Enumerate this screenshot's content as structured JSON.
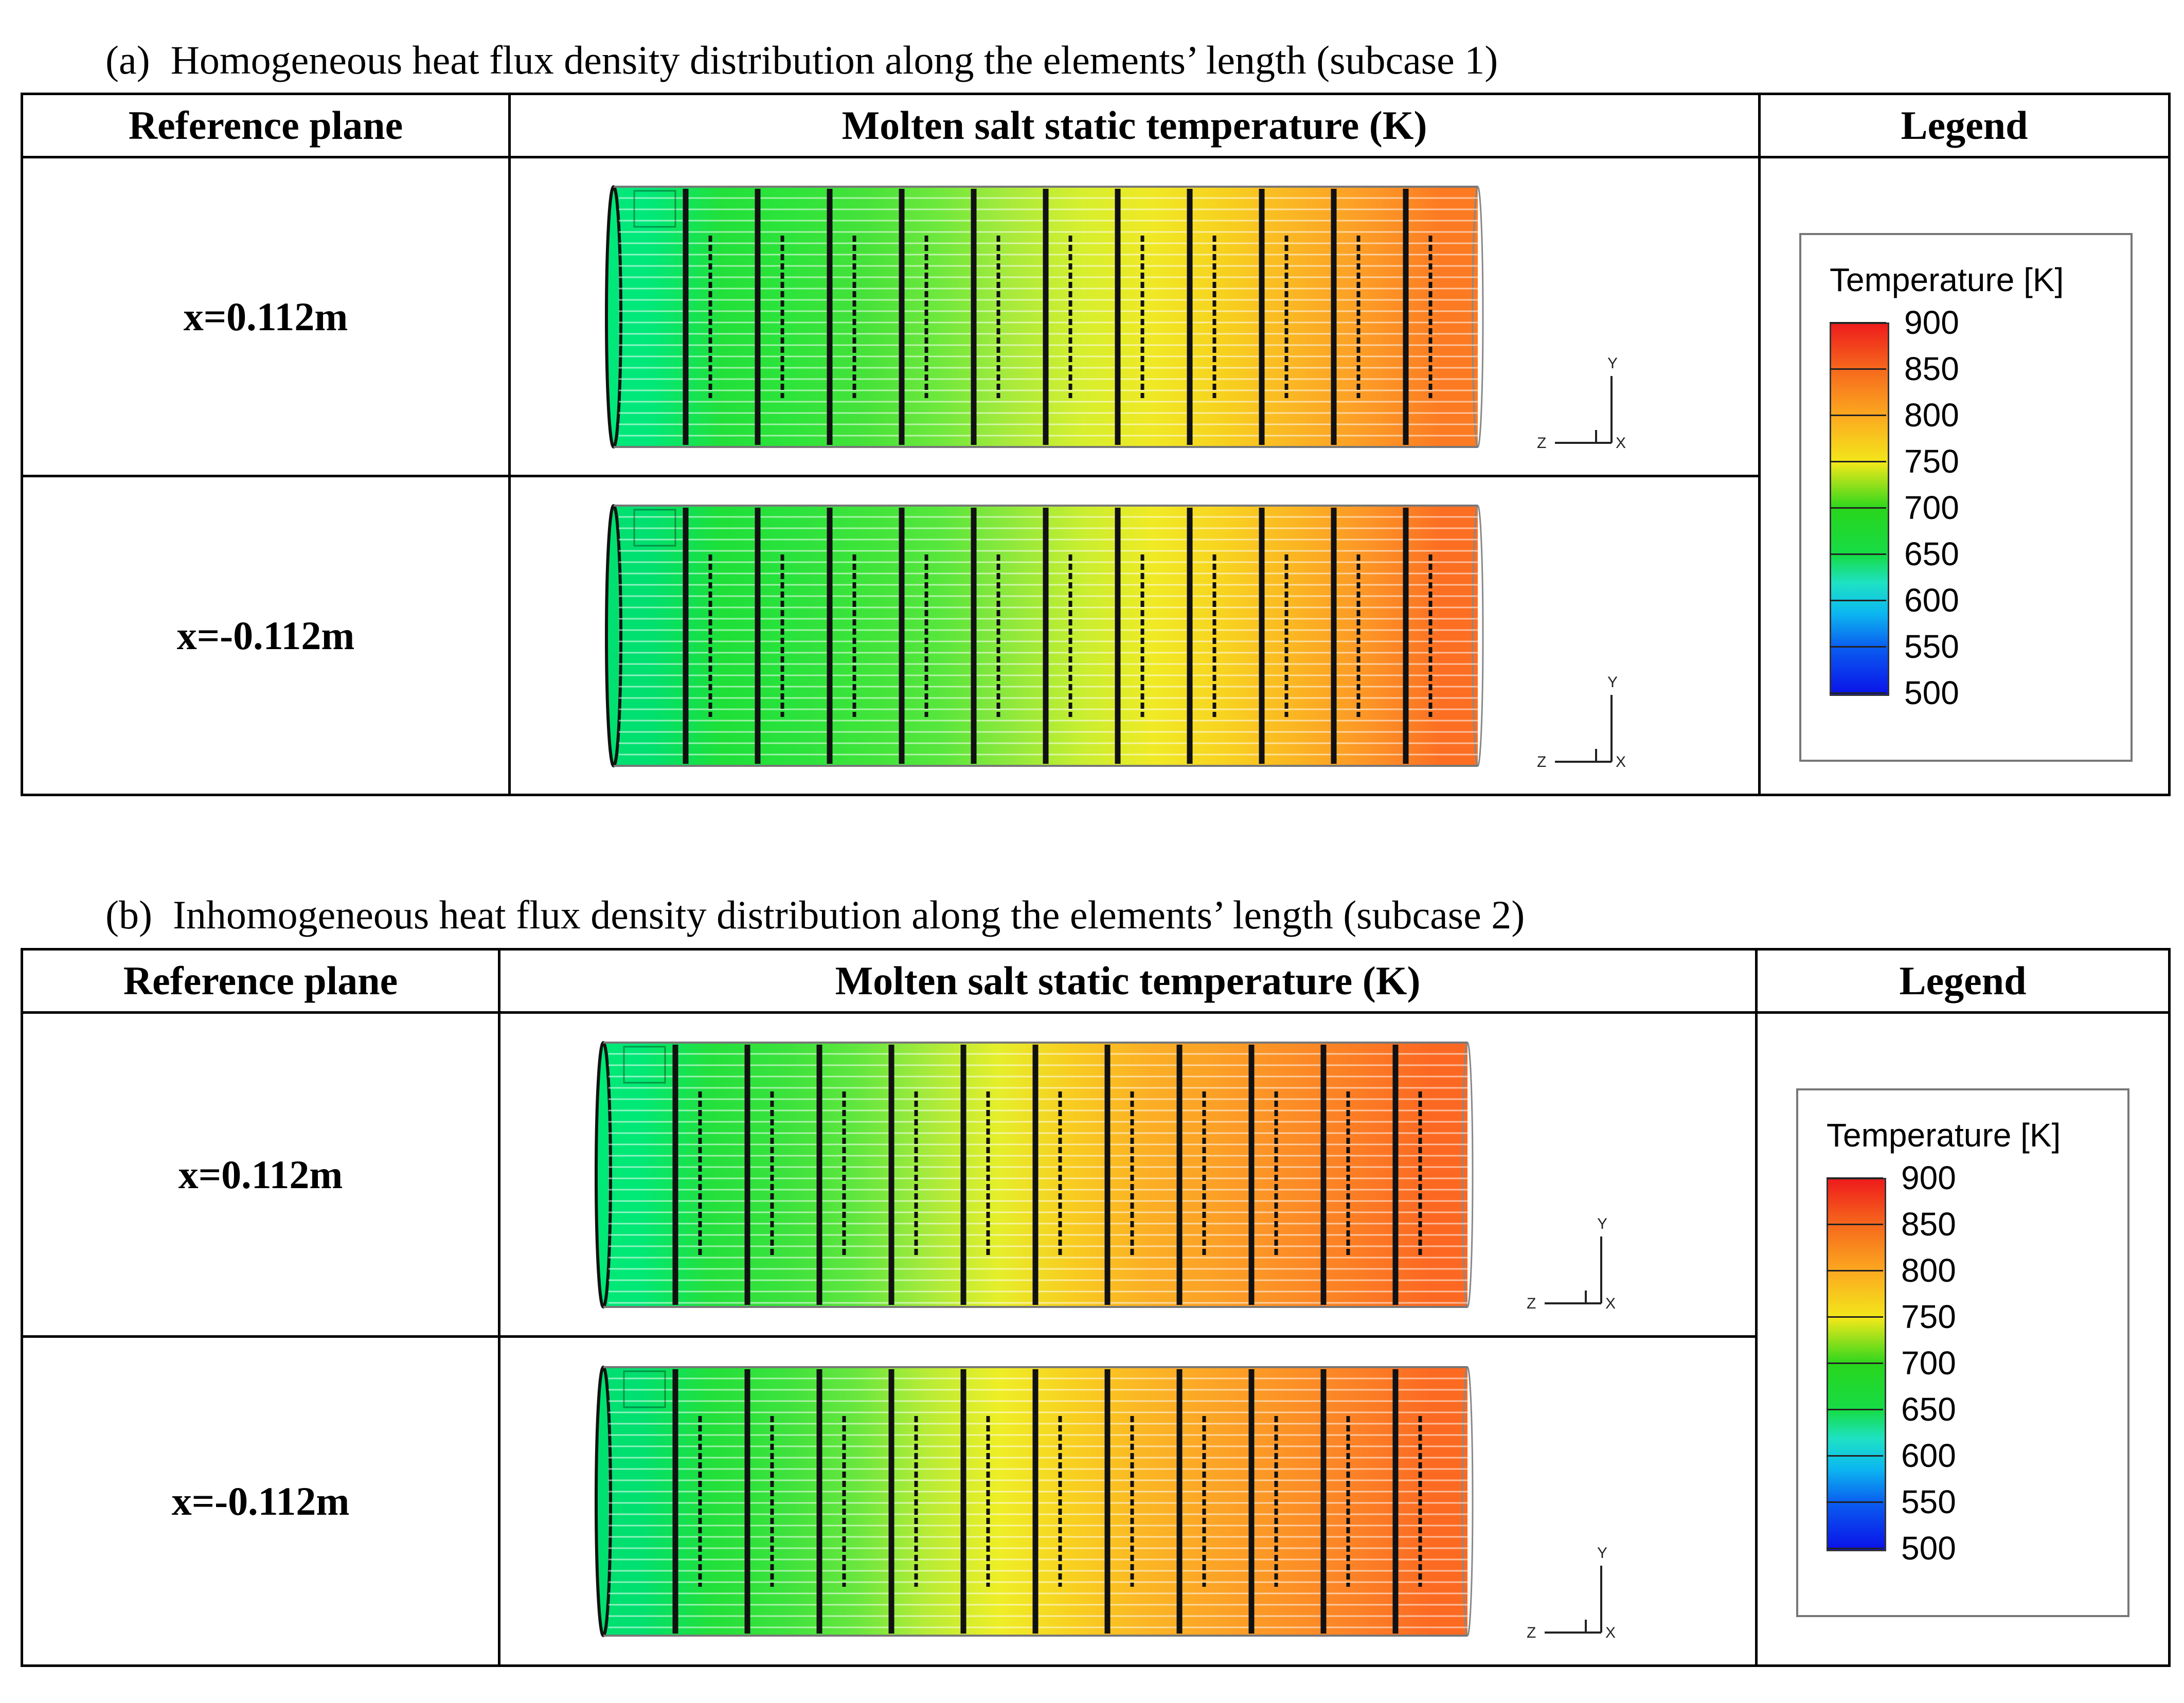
{
  "subcase_a": {
    "label": "(a)",
    "caption": "Homogeneous heat flux density distribution along the elements’ length (subcase 1)",
    "headers": {
      "ref": "Reference plane",
      "temp": "Molten salt static temperature (K)",
      "legend": "Legend"
    },
    "rows": [
      {
        "plane": "x=0.112m",
        "colors": [
          "#00e87a",
          "#22e03a",
          "#2ee43a",
          "#46e23a",
          "#6ee83c",
          "#a8ea3c",
          "#d6ef2e",
          "#f0e824",
          "#f7d01e",
          "#fbb424",
          "#fc9a26",
          "#fc7a22"
        ]
      },
      {
        "plane": "x=-0.112m",
        "colors": [
          "#00e070",
          "#1ee038",
          "#2ae23c",
          "#3ee43a",
          "#56e63c",
          "#8ee83c",
          "#c8ee30",
          "#f0ea24",
          "#f8d220",
          "#fbb422",
          "#fc9426",
          "#fc6e22"
        ]
      }
    ],
    "legend": {
      "title": "Temperature [K]",
      "ticks": [
        "900",
        "850",
        "800",
        "750",
        "700",
        "650",
        "600",
        "550",
        "500"
      ]
    }
  },
  "subcase_b": {
    "label": "(b)",
    "caption": "Inhomogeneous heat flux density distribution along the elements’ length (subcase 2)",
    "headers": {
      "ref": "Reference plane",
      "temp": "Molten salt static temperature (K)",
      "legend": "Legend"
    },
    "rows": [
      {
        "plane": "x=0.112m",
        "colors": [
          "#00e876",
          "#24e03c",
          "#3ae23c",
          "#60e63e",
          "#a6ea3c",
          "#e6ee2a",
          "#f8cc20",
          "#fbb024",
          "#fca026",
          "#fc8e26",
          "#fc7c24",
          "#fc6822"
        ]
      },
      {
        "plane": "x=-0.112m",
        "colors": [
          "#00e070",
          "#22e03a",
          "#3ce23c",
          "#68e63e",
          "#b8ec36",
          "#eeee26",
          "#f8d020",
          "#fbb624",
          "#fca426",
          "#fc9226",
          "#fc8026",
          "#fc6a22"
        ]
      }
    ],
    "legend": {
      "title": "Temperature [K]",
      "ticks": [
        "900",
        "850",
        "800",
        "750",
        "700",
        "650",
        "600",
        "550",
        "500"
      ]
    }
  },
  "axis_labels": {
    "y": "Y",
    "z": "Z",
    "x": "X"
  }
}
